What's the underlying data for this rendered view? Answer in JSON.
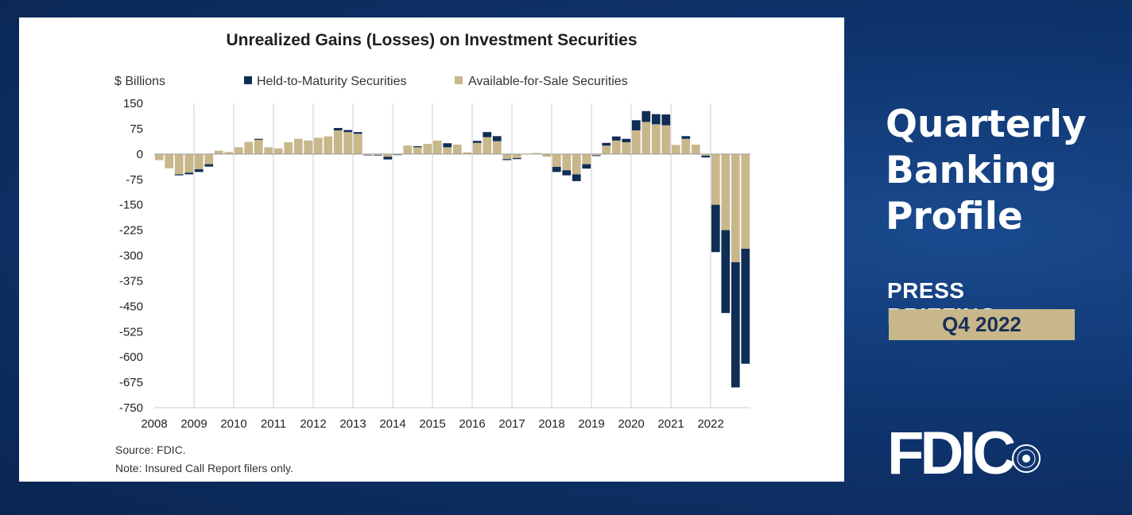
{
  "side": {
    "title_lines": [
      "Quarterly",
      "Banking",
      "Profile"
    ],
    "subtitle": "PRESS BRIEFING",
    "quarter": "Q4 2022",
    "logo_text": "FDIC"
  },
  "colors": {
    "htm": "#0f2d55",
    "afs": "#c8b78a",
    "gridline": "#cfcfcf",
    "badge_bg": "#c8b78a"
  },
  "chart_data": {
    "type": "bar",
    "stacked": true,
    "title": "Unrealized Gains (Losses) on Investment Securities",
    "ylabel": "$ Billions",
    "ylim": [
      -750,
      150
    ],
    "yticks": [
      150,
      75,
      0,
      -75,
      -150,
      -225,
      -300,
      -375,
      -450,
      -525,
      -600,
      -675,
      -750
    ],
    "year_labels": [
      "2008",
      "2009",
      "2010",
      "2011",
      "2012",
      "2013",
      "2014",
      "2015",
      "2016",
      "2017",
      "2018",
      "2019",
      "2020",
      "2021",
      "2022"
    ],
    "legend": [
      "Held-to-Maturity Securities",
      "Available-for-Sale Securities"
    ],
    "quarters_per_year": 4,
    "series": [
      {
        "name": "Available-for-Sale Securities",
        "values": [
          -18,
          -42,
          -60,
          -55,
          -45,
          -30,
          10,
          6,
          20,
          36,
          42,
          20,
          17,
          35,
          45,
          40,
          48,
          52,
          70,
          65,
          60,
          -3,
          -4,
          -8,
          -2,
          25,
          20,
          30,
          40,
          20,
          28,
          5,
          33,
          50,
          38,
          -15,
          -12,
          1,
          3,
          -8,
          -38,
          -48,
          -60,
          -30,
          -4,
          25,
          40,
          35,
          70,
          95,
          88,
          85,
          27,
          45,
          28,
          -5,
          -150,
          -225,
          -320,
          -280
        ],
        "color_key": "afs"
      },
      {
        "name": "Held-to-Maturity Securities",
        "values": [
          0,
          0,
          -3,
          -5,
          -8,
          -7,
          0,
          0,
          0,
          0,
          3,
          0,
          0,
          0,
          0,
          0,
          0,
          0,
          7,
          6,
          5,
          -1,
          -1,
          -8,
          -1,
          0,
          3,
          0,
          0,
          12,
          0,
          0,
          6,
          15,
          15,
          -3,
          -3,
          0,
          0,
          0,
          -15,
          -15,
          -20,
          -13,
          -2,
          8,
          12,
          10,
          30,
          32,
          30,
          32,
          0,
          8,
          0,
          -5,
          -140,
          -245,
          -370,
          -340
        ],
        "color_key": "htm"
      }
    ],
    "notes": [
      "Source: FDIC.",
      "Note: Insured Call Report filers only."
    ]
  }
}
